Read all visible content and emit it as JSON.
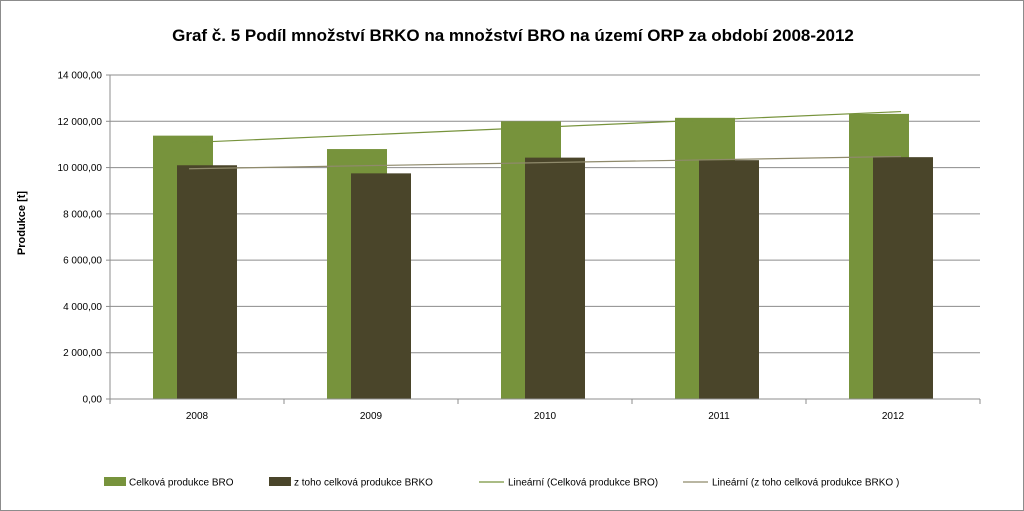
{
  "chart_data": {
    "type": "bar",
    "title": "Graf č. 5 Podíl množství BRKO na množství BRO na území ORP za období 2008-2012",
    "xlabel": "",
    "ylabel": "Produkce [t]",
    "categories": [
      "2008",
      "2009",
      "2010",
      "2011",
      "2012"
    ],
    "ylim": [
      0,
      14000
    ],
    "yticks": [
      0,
      2000,
      4000,
      6000,
      8000,
      10000,
      12000,
      14000
    ],
    "ytick_labels": [
      "0,00",
      "2 000,00",
      "4 000,00",
      "6 000,00",
      "8 000,00",
      "10 000,00",
      "12 000,00",
      "14 000,00"
    ],
    "grid": true,
    "legend_position": "bottom",
    "series": [
      {
        "name": "Celková produkce BRO",
        "values": [
          11380,
          10800,
          12000,
          12150,
          12320
        ],
        "color": "#77933c"
      },
      {
        "name": "z toho celková produkce BRKO",
        "values": [
          10100,
          9750,
          10430,
          10320,
          10450
        ],
        "color": "#4a452a"
      }
    ],
    "trendlines": [
      {
        "name": "Lineární (Celková produkce BRO)",
        "of_series": 0,
        "start": 11080,
        "end": 12420,
        "color": "#77933c"
      },
      {
        "name": "Lineární (z toho celková produkce BRKO )",
        "of_series": 1,
        "start": 9950,
        "end": 10480,
        "color": "#8f8a6b"
      }
    ]
  }
}
